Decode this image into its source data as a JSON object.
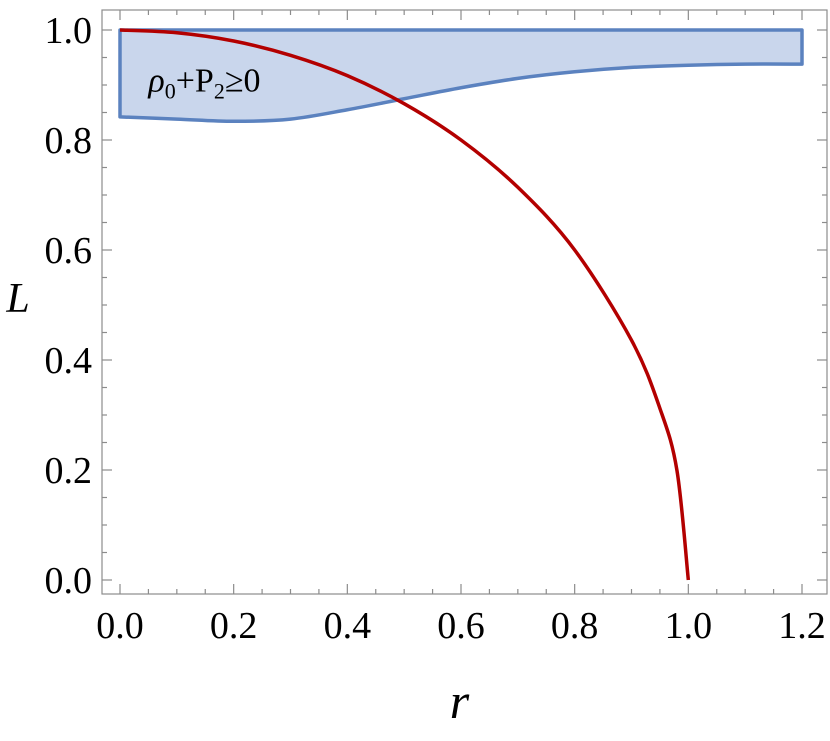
{
  "chart_data": {
    "type": "line",
    "xlabel": "r",
    "ylabel": "L",
    "xlim": [
      0,
      1.2
    ],
    "ylim": [
      0,
      1.0
    ],
    "x_ticks": [
      0.0,
      0.2,
      0.4,
      0.6,
      0.8,
      1.0,
      1.2
    ],
    "y_ticks": [
      0.0,
      0.2,
      0.4,
      0.6,
      0.8,
      1.0
    ],
    "x_tick_labels": [
      "0.0",
      "0.2",
      "0.4",
      "0.6",
      "0.8",
      "1.0",
      "1.2"
    ],
    "y_tick_labels": [
      "0.0",
      "0.2",
      "0.4",
      "0.6",
      "0.8",
      "1.0"
    ],
    "grid": false,
    "frame": "box",
    "series": [
      {
        "kind": "curve",
        "color": "#b30000",
        "points": [
          [
            0.0,
            1.0
          ],
          [
            0.1,
            0.995
          ],
          [
            0.2,
            0.98
          ],
          [
            0.3,
            0.954
          ],
          [
            0.4,
            0.917
          ],
          [
            0.5,
            0.866
          ],
          [
            0.6,
            0.8
          ],
          [
            0.7,
            0.714
          ],
          [
            0.8,
            0.6
          ],
          [
            0.9,
            0.436
          ],
          [
            0.95,
            0.312
          ],
          [
            0.98,
            0.199
          ],
          [
            1.0,
            0.0
          ]
        ]
      },
      {
        "kind": "region",
        "fill": "#c9d6ec",
        "stroke": "#5b82bf",
        "upper": [
          [
            0.0,
            1.0
          ],
          [
            1.2,
            1.0
          ]
        ],
        "lower": [
          [
            0.0,
            0.842
          ],
          [
            0.1,
            0.838
          ],
          [
            0.2,
            0.834
          ],
          [
            0.3,
            0.838
          ],
          [
            0.4,
            0.855
          ],
          [
            0.5,
            0.875
          ],
          [
            0.6,
            0.895
          ],
          [
            0.7,
            0.912
          ],
          [
            0.8,
            0.924
          ],
          [
            0.9,
            0.932
          ],
          [
            1.0,
            0.936
          ],
          [
            1.1,
            0.938
          ],
          [
            1.2,
            0.938
          ]
        ]
      }
    ],
    "annotation": {
      "prefix": "ρ",
      "sub1": "0",
      "mid": "+P",
      "sub2": "2",
      "suffix": "≥0",
      "x": 0.05,
      "y": 0.91
    }
  }
}
